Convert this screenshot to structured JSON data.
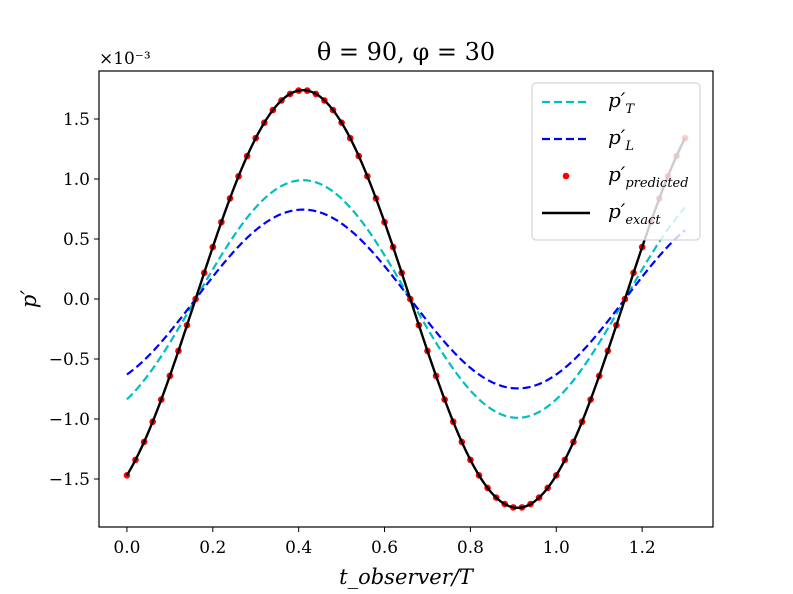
{
  "chart_data": {
    "type": "line",
    "title": "θ = 90, φ = 30",
    "xlabel": "t_observer/T",
    "ylabel": "p′",
    "y_scale_label": "×10⁻³",
    "xlim": [
      -0.065,
      1.365
    ],
    "ylim": [
      -1.9,
      1.9
    ],
    "x_ticks": [
      0.0,
      0.2,
      0.4,
      0.6,
      0.8,
      1.0,
      1.2
    ],
    "x_tick_labels": [
      "0.0",
      "0.2",
      "0.4",
      "0.6",
      "0.8",
      "1.0",
      "1.2"
    ],
    "y_ticks": [
      -1.5,
      -1.0,
      -0.5,
      0.0,
      0.5,
      1.0,
      1.5
    ],
    "y_tick_labels": [
      "−1.5",
      "−1.0",
      "−0.5",
      "0.0",
      "0.5",
      "1.0",
      "1.5"
    ],
    "x_range": [
      0.0,
      1.3
    ],
    "series": [
      {
        "name": "p′_T",
        "label_main": "p′",
        "label_sub": "T",
        "style": "dashed",
        "color": "#00bfbf",
        "amplitude": 0.99,
        "period": 1.0,
        "peak_x": 0.41
      },
      {
        "name": "p′_L",
        "label_main": "p′",
        "label_sub": "L",
        "style": "dashed",
        "color": "#0000ff",
        "amplitude": 0.745,
        "period": 1.0,
        "peak_x": 0.41
      },
      {
        "name": "p′_predicted",
        "label_main": "p′",
        "label_sub": "predicted",
        "style": "markers",
        "color": "#ff0000",
        "amplitude": 1.74,
        "period": 1.0,
        "peak_x": 0.41,
        "marker_step": 0.02
      },
      {
        "name": "p′_exact",
        "label_main": "p′",
        "label_sub": "exact",
        "style": "solid",
        "color": "#000000",
        "amplitude": 1.74,
        "period": 1.0,
        "peak_x": 0.41
      }
    ],
    "legend_position": "top-right"
  }
}
